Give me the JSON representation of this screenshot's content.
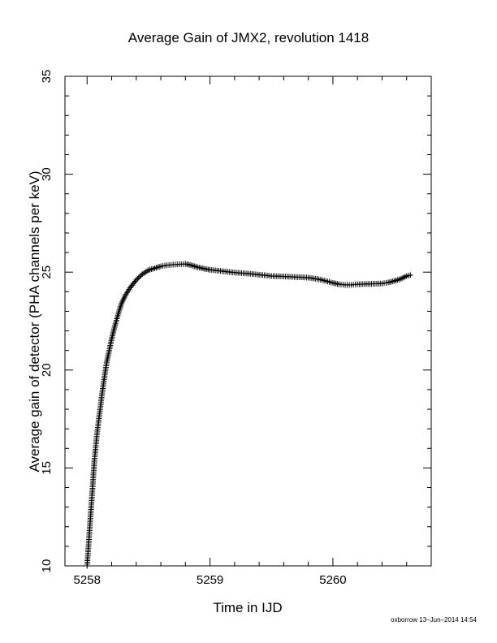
{
  "chart_data": {
    "type": "scatter",
    "title": "Average Gain of JMX2, revolution 1418",
    "xlabel": "Time in IJD",
    "ylabel": "Average gain of detector (PHA channels per keV)",
    "xlim": [
      5257.82,
      5260.8
    ],
    "ylim": [
      10,
      35
    ],
    "xticks": [
      5258,
      5259,
      5260
    ],
    "xtick_labels": [
      "5258",
      "5259",
      "5260"
    ],
    "yticks": [
      10,
      15,
      20,
      25,
      30,
      35
    ],
    "ytick_labels": [
      "10",
      "15",
      "20",
      "25",
      "30",
      "35"
    ],
    "marker": "plus",
    "grid": false,
    "series": [
      {
        "x": [
          5258.0,
          5258.02,
          5258.04,
          5258.06,
          5258.08,
          5258.1,
          5258.12,
          5258.14,
          5258.16,
          5258.18,
          5258.2,
          5258.22,
          5258.25,
          5258.28,
          5258.31,
          5258.35,
          5258.4,
          5258.45,
          5258.5,
          5258.55,
          5258.6,
          5258.65,
          5258.7,
          5258.75,
          5258.8,
          5258.85,
          5258.9,
          5258.95,
          5259.0,
          5259.1,
          5259.2,
          5259.3,
          5259.4,
          5259.5,
          5259.6,
          5259.7,
          5259.8,
          5259.9,
          5260.0,
          5260.05,
          5260.1,
          5260.15,
          5260.2,
          5260.3,
          5260.4,
          5260.45,
          5260.5,
          5260.55,
          5260.6,
          5260.63
        ],
        "y": [
          10.0,
          11.8,
          13.6,
          15.4,
          16.7,
          17.7,
          18.7,
          19.6,
          20.4,
          21.0,
          21.6,
          22.1,
          22.8,
          23.4,
          23.8,
          24.2,
          24.6,
          24.9,
          25.1,
          25.2,
          25.3,
          25.35,
          25.38,
          25.4,
          25.42,
          25.35,
          25.25,
          25.18,
          25.12,
          25.05,
          24.98,
          24.93,
          24.87,
          24.8,
          24.78,
          24.75,
          24.72,
          24.62,
          24.45,
          24.38,
          24.35,
          24.35,
          24.38,
          24.4,
          24.42,
          24.47,
          24.55,
          24.65,
          24.8,
          24.85
        ]
      }
    ]
  },
  "footer_text": "oxborrow 13–Jun–2014 14:54"
}
